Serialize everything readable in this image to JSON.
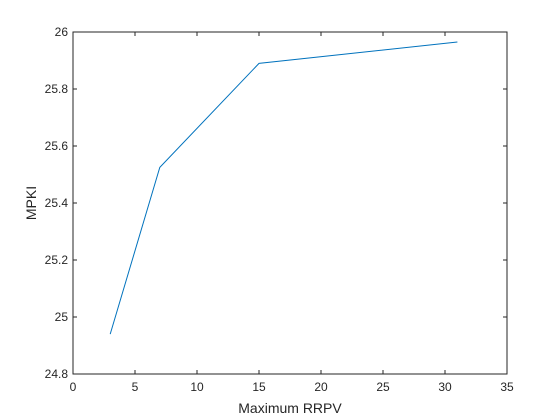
{
  "chart_data": {
    "type": "line",
    "title": "",
    "xlabel": "Maximum RRPV",
    "ylabel": "MPKI",
    "xlim": [
      0,
      35
    ],
    "ylim": [
      24.8,
      26
    ],
    "x_ticks": [
      "0",
      "5",
      "10",
      "15",
      "20",
      "25",
      "30",
      "35"
    ],
    "y_ticks": [
      "24.8",
      "25",
      "25.2",
      "25.4",
      "25.6",
      "25.8",
      "26"
    ],
    "grid": false,
    "legend": "none",
    "series": [
      {
        "color": "#0072BD",
        "x": [
          3,
          7,
          15,
          31
        ],
        "y": [
          24.94,
          25.525,
          25.89,
          25.965
        ]
      }
    ]
  }
}
